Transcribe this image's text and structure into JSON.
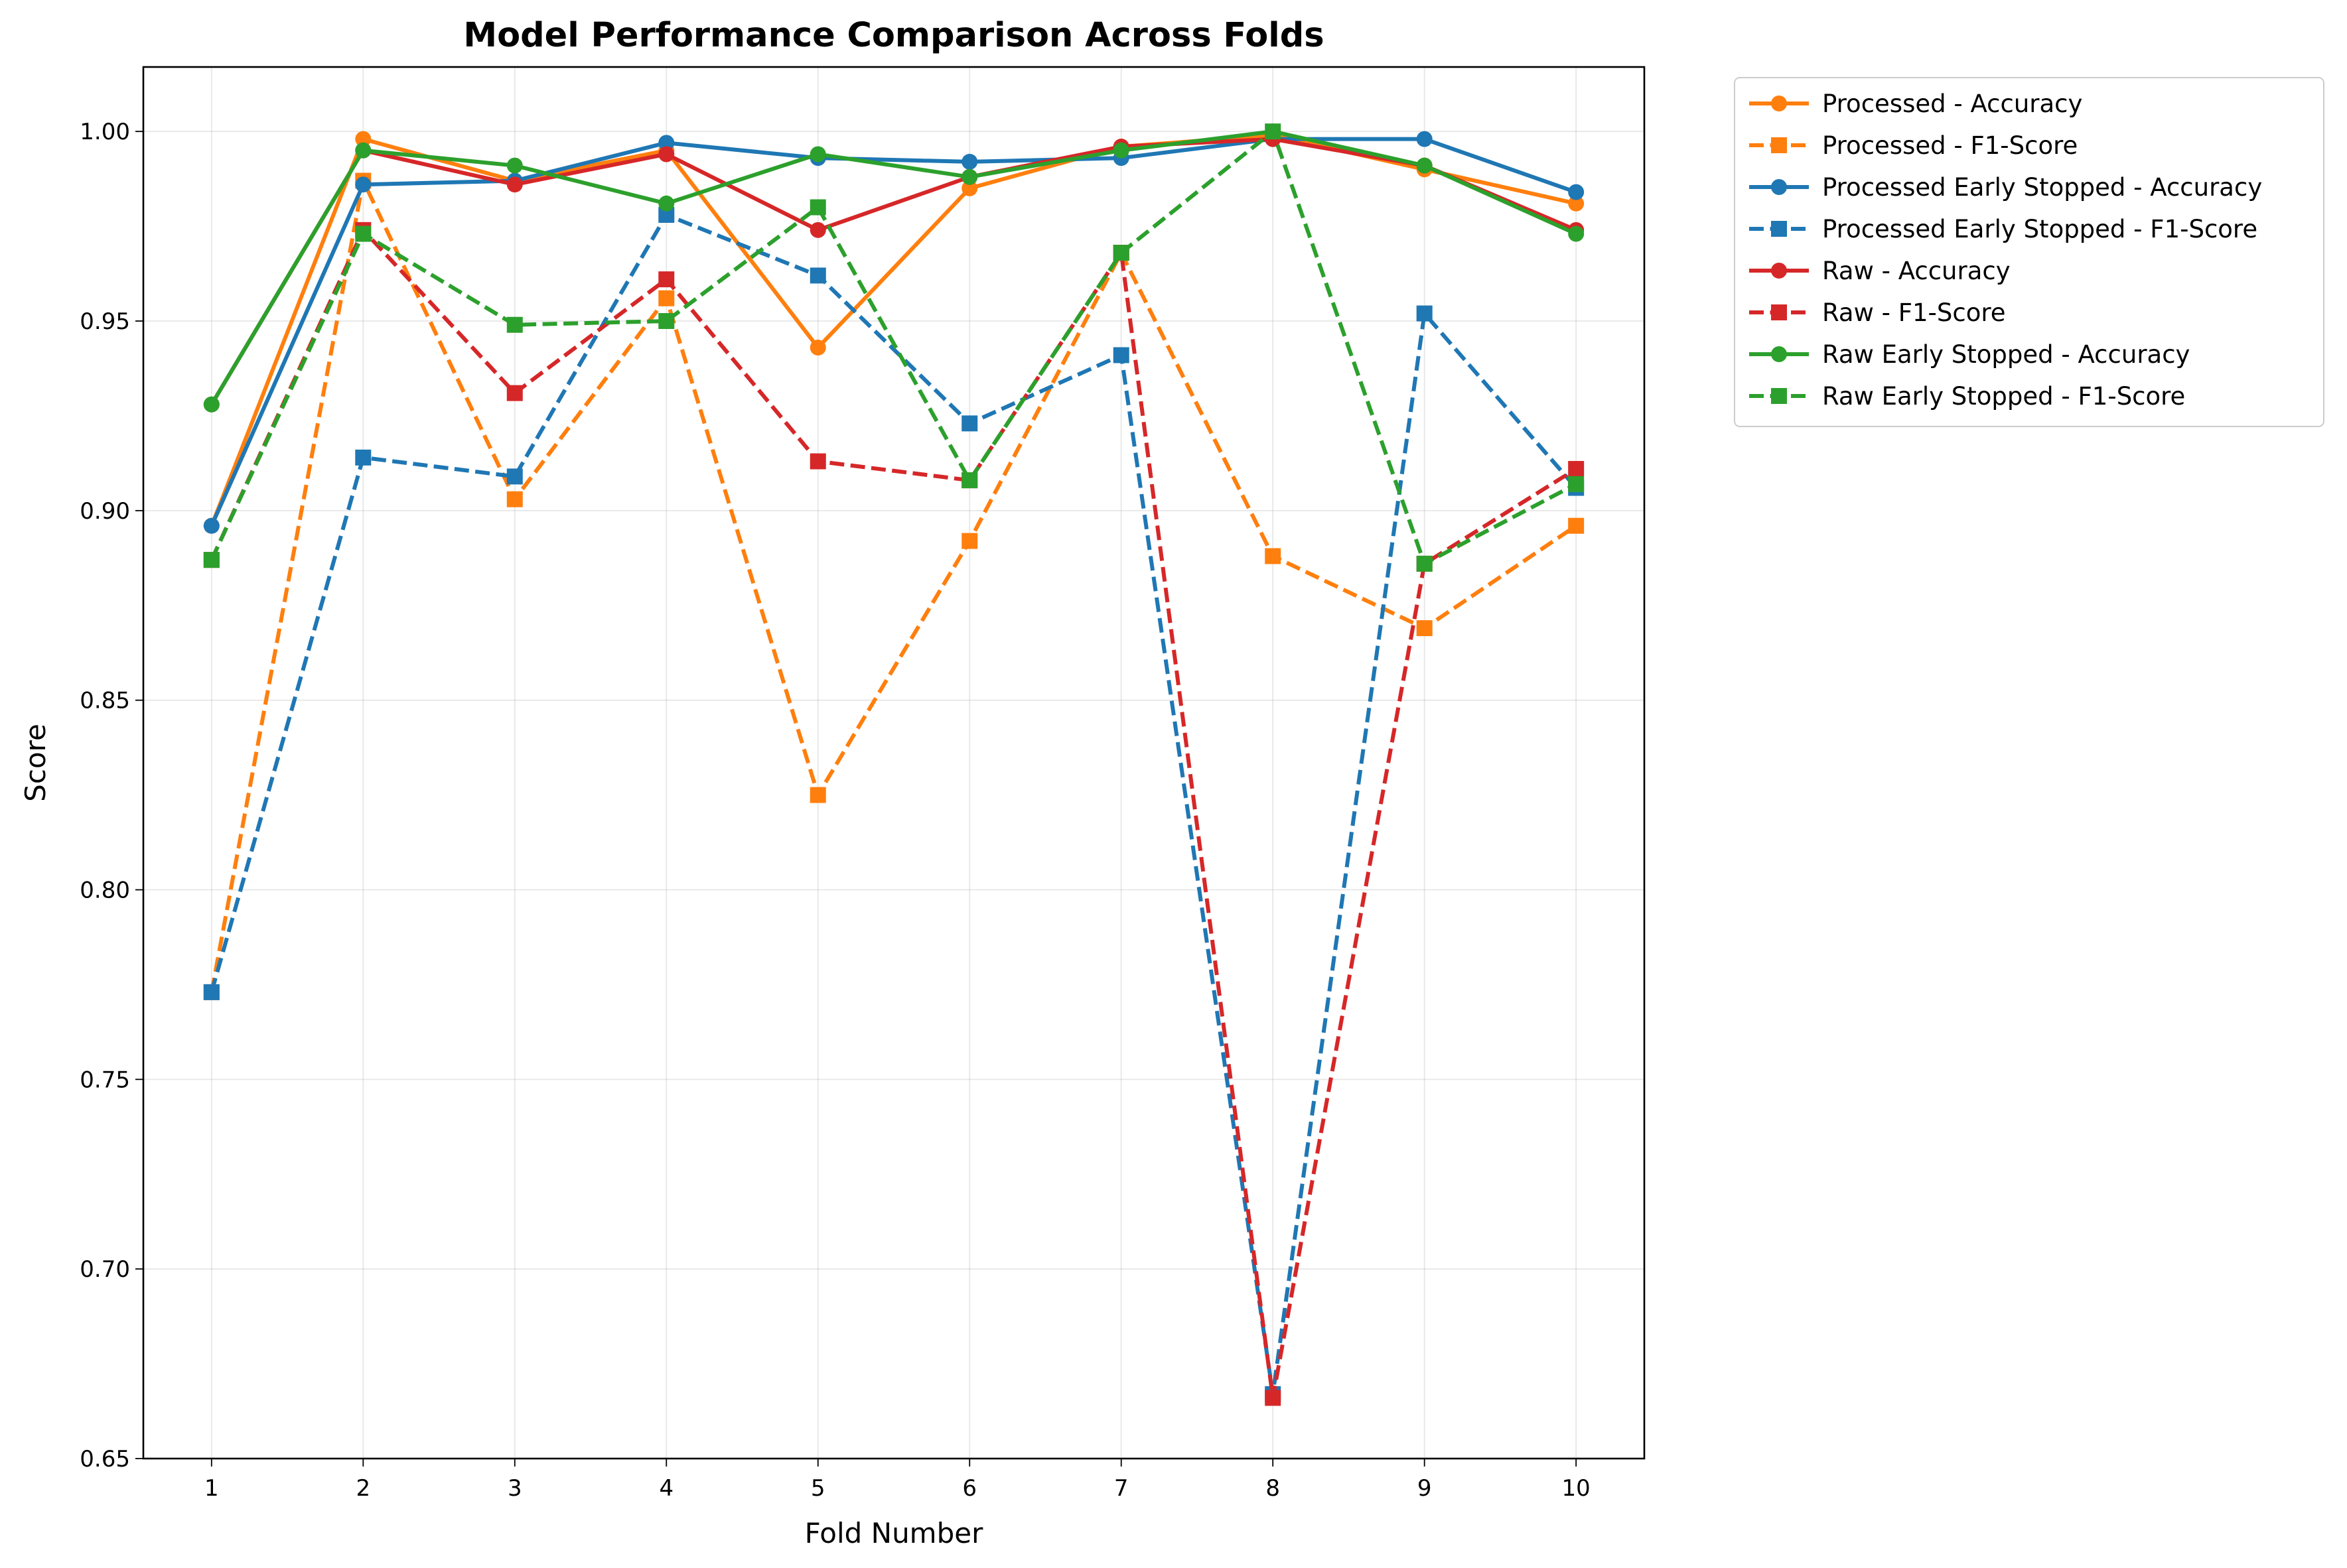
{
  "chart_data": {
    "type": "line",
    "title": "Model Performance Comparison Across Folds",
    "xlabel": "Fold Number",
    "ylabel": "Score",
    "x": [
      1,
      2,
      3,
      4,
      5,
      6,
      7,
      8,
      9,
      10
    ],
    "xticks": [
      "1",
      "2",
      "3",
      "4",
      "5",
      "6",
      "7",
      "8",
      "9",
      "10"
    ],
    "xlim": [
      0.55,
      10.45
    ],
    "ylim": [
      0.65,
      1.017
    ],
    "yticks": [
      0.65,
      0.7,
      0.75,
      0.8,
      0.85,
      0.9,
      0.95,
      1.0
    ],
    "ytick_labels": [
      "0.65",
      "0.70",
      "0.75",
      "0.80",
      "0.85",
      "0.90",
      "0.95",
      "1.00"
    ],
    "grid": true,
    "legend_position": "outside-right-top",
    "series": [
      {
        "name": "Processed - Accuracy",
        "color": "#ff7f0e",
        "style": "solid",
        "marker": "circle",
        "values": [
          0.896,
          0.998,
          0.987,
          0.995,
          0.943,
          0.985,
          0.996,
          0.999,
          0.99,
          0.981
        ]
      },
      {
        "name": "Processed - F1-Score",
        "color": "#ff7f0e",
        "style": "dashed",
        "marker": "square",
        "values": [
          0.773,
          0.987,
          0.903,
          0.956,
          0.825,
          0.892,
          0.968,
          0.888,
          0.869,
          0.896
        ]
      },
      {
        "name": "Processed Early Stopped - Accuracy",
        "color": "#1f77b4",
        "style": "solid",
        "marker": "circle",
        "values": [
          0.896,
          0.986,
          0.987,
          0.997,
          0.993,
          0.992,
          0.993,
          0.998,
          0.998,
          0.984
        ]
      },
      {
        "name": "Processed Early Stopped - F1-Score",
        "color": "#1f77b4",
        "style": "dashed",
        "marker": "square",
        "values": [
          0.773,
          0.914,
          0.909,
          0.978,
          0.962,
          0.923,
          0.941,
          0.667,
          0.952,
          0.906
        ]
      },
      {
        "name": "Raw - Accuracy",
        "color": "#d62728",
        "style": "solid",
        "marker": "circle",
        "values": [
          0.928,
          0.995,
          0.986,
          0.994,
          0.974,
          0.988,
          0.996,
          0.998,
          0.991,
          0.974
        ]
      },
      {
        "name": "Raw - F1-Score",
        "color": "#d62728",
        "style": "dashed",
        "marker": "square",
        "values": [
          0.887,
          0.974,
          0.931,
          0.961,
          0.913,
          0.908,
          0.968,
          0.666,
          0.886,
          0.911
        ]
      },
      {
        "name": "Raw Early Stopped - Accuracy",
        "color": "#2ca02c",
        "style": "solid",
        "marker": "circle",
        "values": [
          0.928,
          0.995,
          0.991,
          0.981,
          0.994,
          0.988,
          0.995,
          1.0,
          0.991,
          0.973
        ]
      },
      {
        "name": "Raw Early Stopped - F1-Score",
        "color": "#2ca02c",
        "style": "dashed",
        "marker": "square",
        "values": [
          0.887,
          0.973,
          0.949,
          0.95,
          0.98,
          0.908,
          0.968,
          1.0,
          0.886,
          0.907
        ]
      }
    ]
  }
}
